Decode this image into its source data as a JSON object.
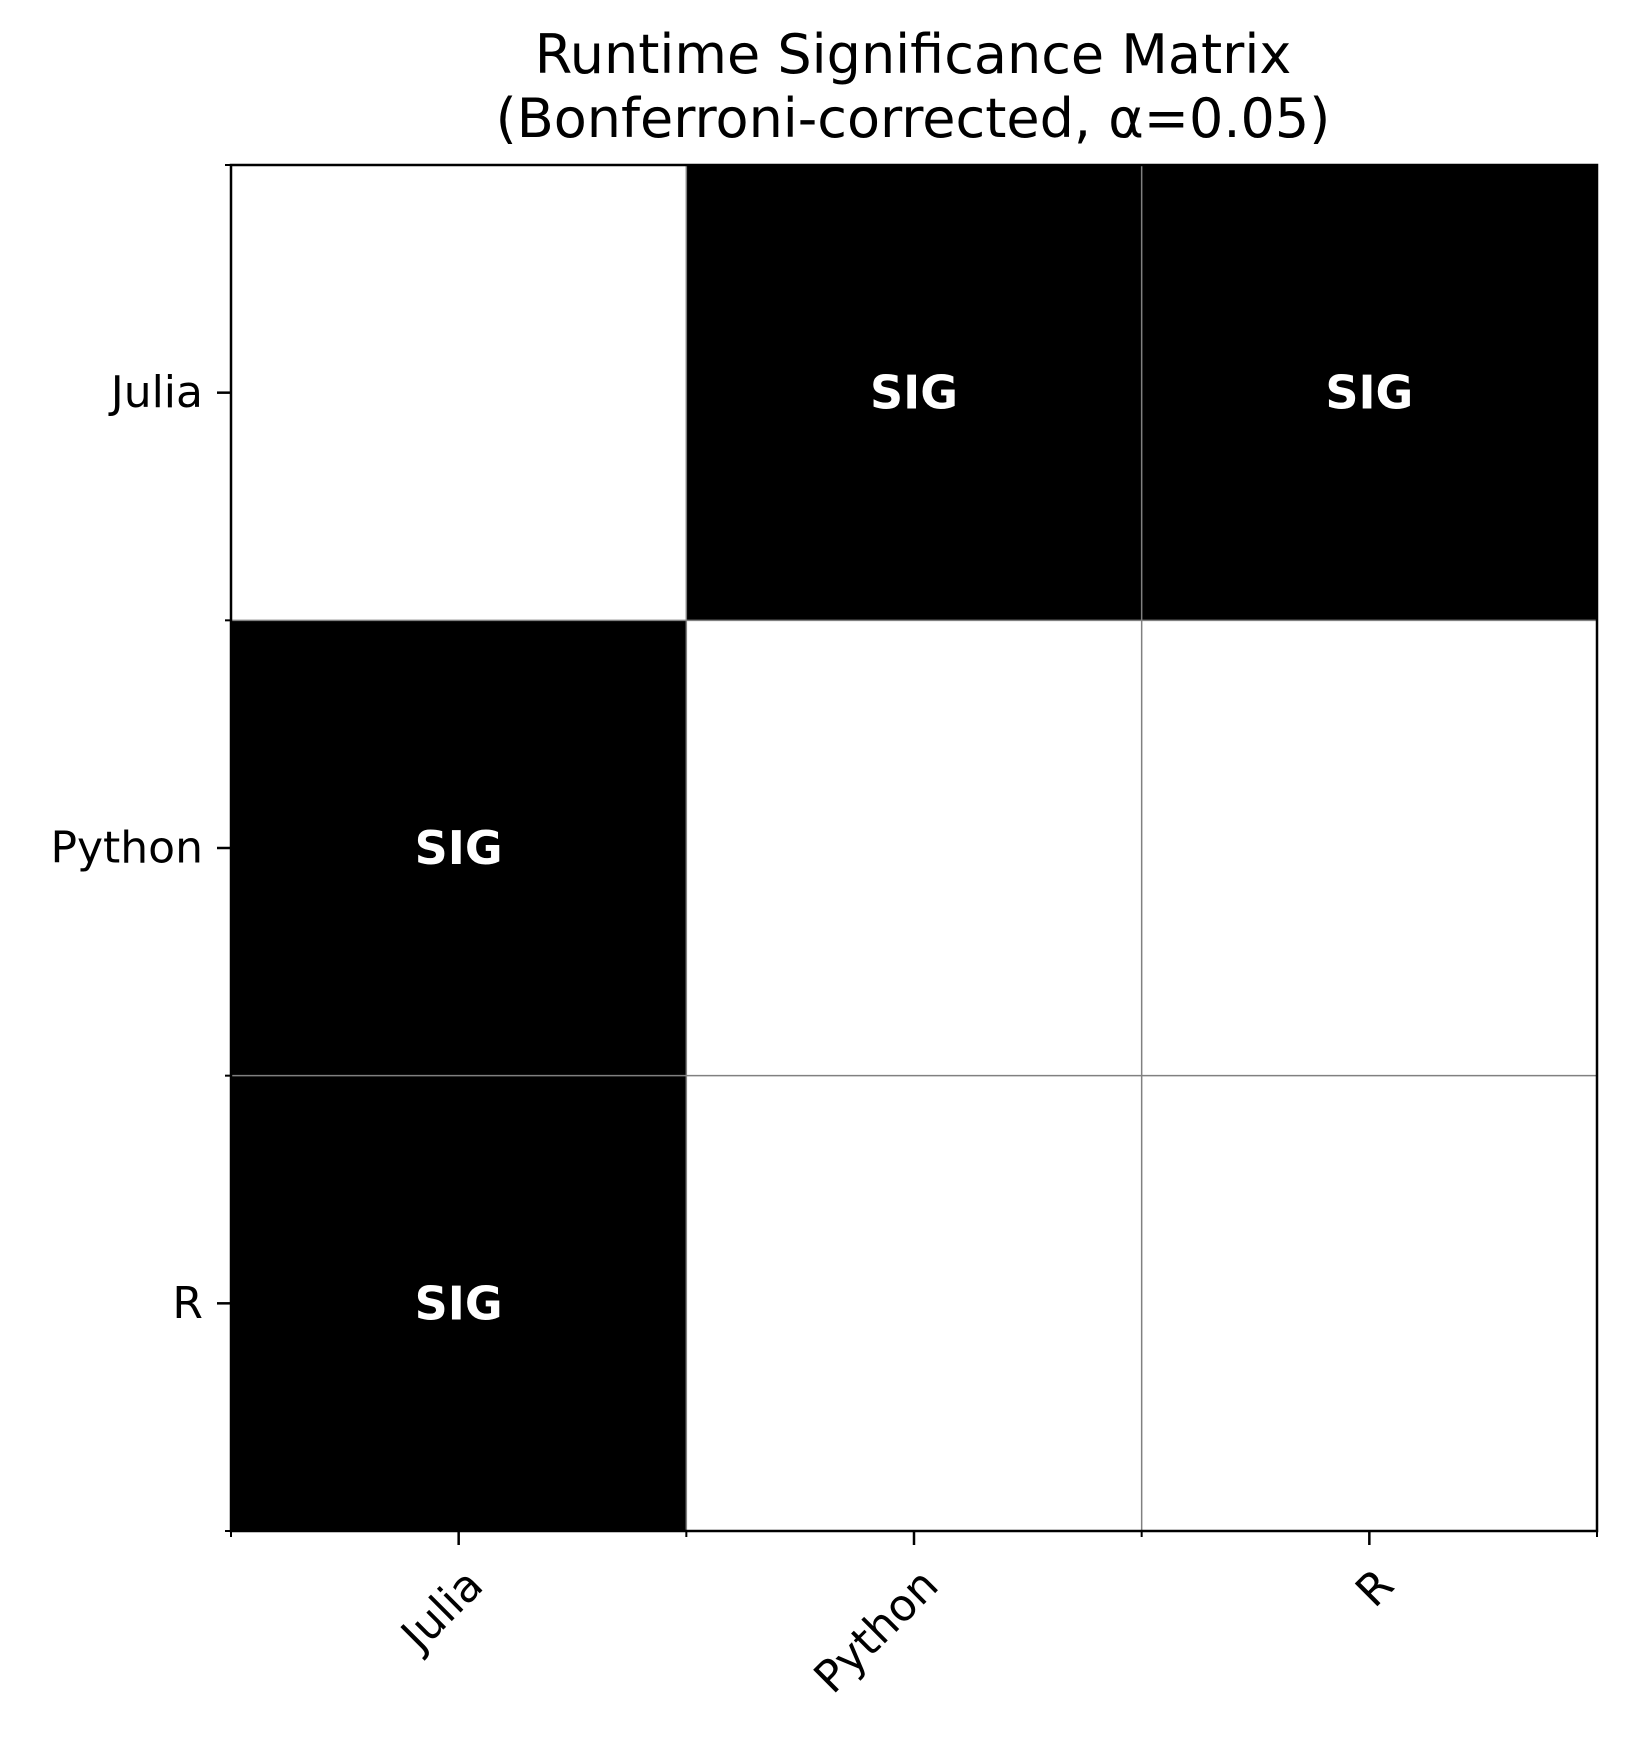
{
  "chart_data": {
    "type": "heatmap",
    "title_lines": [
      "Runtime Significance Matrix",
      "(Bonferroni-corrected, α=0.05)"
    ],
    "x_categories": [
      "Julia",
      "Python",
      "R"
    ],
    "y_categories": [
      "Julia",
      "Python",
      "R"
    ],
    "matrix": [
      [
        0,
        1,
        1
      ],
      [
        1,
        0,
        0
      ],
      [
        1,
        0,
        0
      ]
    ],
    "cell_labels": [
      [
        "",
        "SIG",
        "SIG"
      ],
      [
        "SIG",
        "",
        ""
      ],
      [
        "SIG",
        "",
        ""
      ]
    ],
    "colors": {
      "significant": "#000000",
      "not_significant": "#ffffff",
      "grid": "#808080",
      "significant_label": "#ffffff"
    },
    "x_tick_rotation_deg": 45
  }
}
